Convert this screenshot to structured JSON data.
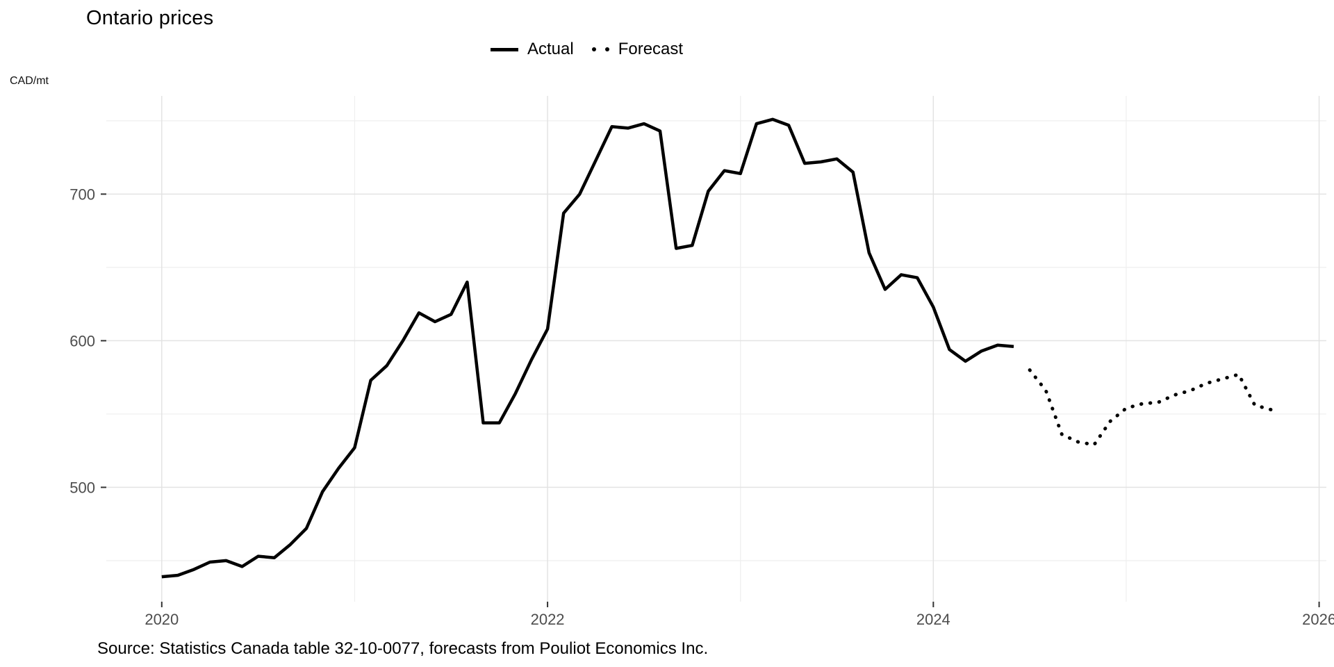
{
  "chart_data": {
    "type": "line",
    "title": "Ontario prices",
    "unit_label": "CAD/mt",
    "source": "Source: Statistics Canada table 32-10-0077, forecasts from Pouliot Economics Inc.",
    "legend": {
      "actual": "Actual",
      "forecast": "Forecast"
    },
    "xlim": [
      2019.7125,
      2026.0375
    ],
    "ylim": [
      422,
      767
    ],
    "x_ticks": [
      2020,
      2022,
      2024,
      2026
    ],
    "x_minor": [
      2021,
      2023,
      2025
    ],
    "y_ticks": [
      500,
      600,
      700
    ],
    "y_minor": [
      450,
      550,
      650,
      750
    ],
    "grid": true,
    "legend_position": "top-center",
    "colors": {
      "line": "#000000",
      "tick_label": "#4d4d4d",
      "grid_major": "#e3e3e3",
      "grid_minor": "#efefef",
      "tick_mark": "#333333"
    },
    "series": [
      {
        "name": "Actual",
        "style": "solid",
        "start": "2020-01",
        "values": [
          439,
          440,
          444,
          449,
          450,
          446,
          453,
          452,
          461,
          472,
          497,
          513,
          527,
          573,
          583,
          600,
          619,
          613,
          618,
          640,
          544,
          544,
          564,
          587,
          608,
          687,
          700,
          723,
          746,
          745,
          748,
          743,
          663,
          665,
          702,
          716,
          714,
          748,
          751,
          747,
          721,
          722,
          724,
          715,
          660,
          635,
          645,
          643,
          623,
          594,
          586,
          593,
          597,
          596
        ]
      },
      {
        "name": "Forecast",
        "style": "dotted",
        "start": "2024-07",
        "values": [
          580,
          566,
          536,
          531,
          529,
          545,
          554,
          557,
          558,
          563,
          566,
          571,
          574,
          577,
          556,
          553
        ]
      }
    ]
  }
}
